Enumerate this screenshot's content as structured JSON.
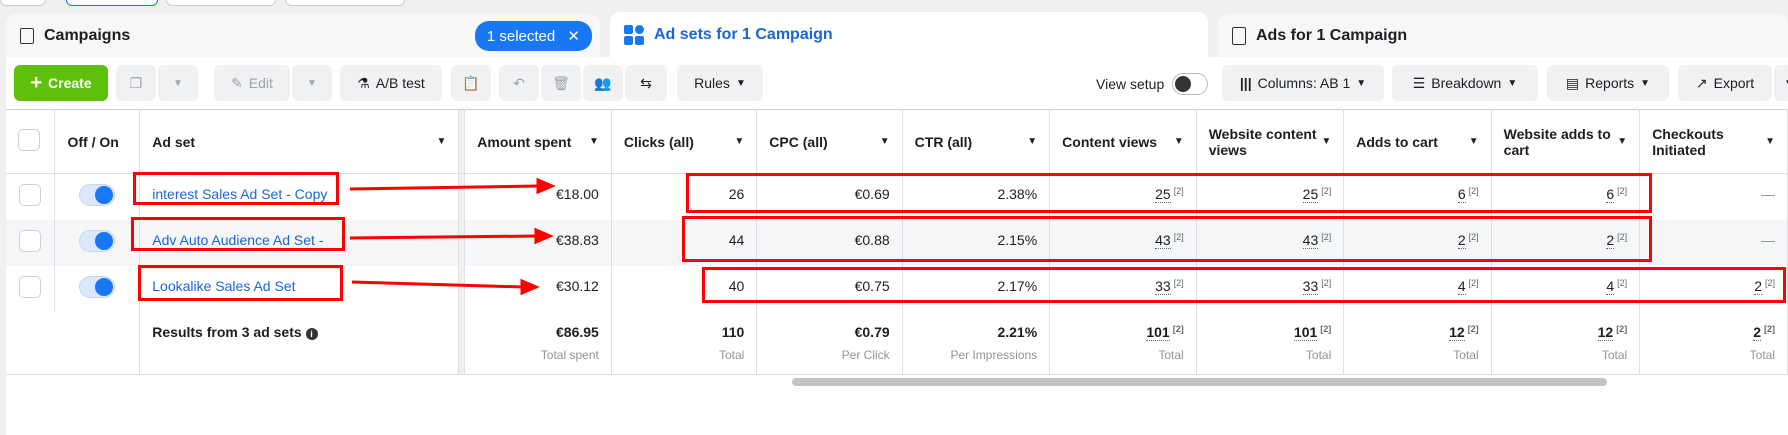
{
  "tabs": {
    "campaigns": "Campaigns",
    "selected_badge": "1 selected",
    "adsets": "Ad sets for 1 Campaign",
    "ads": "Ads for 1 Campaign"
  },
  "toolbar": {
    "create": "Create",
    "edit": "Edit",
    "ab_test": "A/B test",
    "rules": "Rules",
    "view_setup": "View setup",
    "columns": "Columns: AB 1",
    "breakdown": "Breakdown",
    "reports": "Reports",
    "export": "Export"
  },
  "colors": {
    "accent": "#1877f2",
    "create": "#5fbf0a",
    "annotation": "#ff0000"
  },
  "table": {
    "headers": [
      "Off / On",
      "Ad set",
      "Amount spent",
      "Clicks (all)",
      "CPC (all)",
      "CTR (all)",
      "Content views",
      "Website content views",
      "Adds to cart",
      "Website adds to cart",
      "Checkouts Initiated"
    ],
    "rows": [
      {
        "on": true,
        "name": "interest Sales Ad Set - Copy",
        "spent": "€18.00",
        "clicks": "26",
        "cpc": "€0.69",
        "ctr": "2.38%",
        "cv": "25",
        "wcv": "25",
        "atc": "6",
        "watc": "6",
        "checkouts": "—"
      },
      {
        "on": true,
        "name": "Adv Auto Audience Ad Set -",
        "spent": "€38.83",
        "clicks": "44",
        "cpc": "€0.88",
        "ctr": "2.15%",
        "cv": "43",
        "wcv": "43",
        "atc": "2",
        "watc": "2",
        "checkouts": "—"
      },
      {
        "on": true,
        "name": "Lookalike Sales Ad Set",
        "spent": "€30.12",
        "clicks": "40",
        "cpc": "€0.75",
        "ctr": "2.17%",
        "cv": "33",
        "wcv": "33",
        "atc": "4",
        "watc": "4",
        "checkouts": "2"
      }
    ],
    "attribution_marker": "[2]",
    "summary": {
      "label": "Results from 3 ad sets",
      "spent": "€86.95",
      "spent_sub": "Total spent",
      "clicks": "110",
      "clicks_sub": "Total",
      "cpc": "€0.79",
      "cpc_sub": "Per Click",
      "ctr": "2.21%",
      "ctr_sub": "Per Impressions",
      "cv": "101",
      "cv_sub": "Total",
      "wcv": "101",
      "wcv_sub": "Total",
      "atc": "12",
      "atc_sub": "Total",
      "watc": "12",
      "watc_sub": "Total",
      "checkouts": "2",
      "checkouts_sub": "Total"
    }
  }
}
